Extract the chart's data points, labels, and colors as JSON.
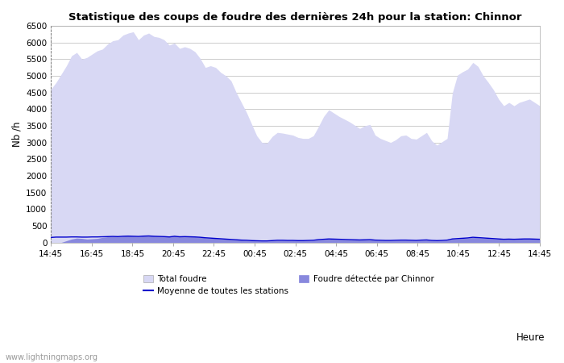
{
  "title": "Statistique des coups de foudre des dernières 24h pour la station: Chinnor",
  "ylabel": "Nb /h",
  "xlabel": "Heure",
  "watermark": "www.lightningmaps.org",
  "ylim": [
    0,
    6500
  ],
  "yticks": [
    0,
    500,
    1000,
    1500,
    2000,
    2500,
    3000,
    3500,
    4000,
    4500,
    5000,
    5500,
    6000,
    6500
  ],
  "xtick_labels": [
    "14:45",
    "16:45",
    "18:45",
    "20:45",
    "22:45",
    "00:45",
    "02:45",
    "04:45",
    "06:45",
    "08:45",
    "10:45",
    "12:45",
    "14:45"
  ],
  "background_color": "#ffffff",
  "plot_bg_color": "#ffffff",
  "grid_color": "#cccccc",
  "fill_total_color": "#d8d8f4",
  "fill_local_color": "#8888dd",
  "line_color": "#0000cc",
  "total_foudre": [
    4600,
    4800,
    5050,
    5300,
    5600,
    5700,
    5500,
    5550,
    5650,
    5750,
    5800,
    5950,
    6050,
    6080,
    6220,
    6280,
    6320,
    6080,
    6220,
    6280,
    6180,
    6150,
    6080,
    5920,
    5980,
    5820,
    5870,
    5820,
    5720,
    5520,
    5250,
    5300,
    5250,
    5100,
    5000,
    4850,
    4500,
    4200,
    3900,
    3550,
    3200,
    3000,
    2980,
    3180,
    3300,
    3280,
    3250,
    3220,
    3150,
    3120,
    3120,
    3200,
    3480,
    3780,
    3980,
    3880,
    3780,
    3700,
    3620,
    3520,
    3420,
    3500,
    3540,
    3220,
    3120,
    3060,
    3000,
    3080,
    3200,
    3220,
    3120,
    3100,
    3200,
    3300,
    3050,
    2920,
    3020,
    3120,
    4480,
    5020,
    5120,
    5200,
    5400,
    5280,
    5000,
    4800,
    4580,
    4300,
    4100,
    4200,
    4100,
    4200,
    4250,
    4300,
    4200,
    4100
  ],
  "local_foudre": [
    0,
    0,
    0,
    50,
    100,
    130,
    120,
    100,
    110,
    120,
    150,
    170,
    180,
    170,
    190,
    200,
    190,
    180,
    200,
    210,
    195,
    190,
    180,
    170,
    200,
    180,
    185,
    180,
    170,
    160,
    140,
    130,
    120,
    110,
    100,
    90,
    80,
    70,
    60,
    50,
    45,
    40,
    40,
    50,
    60,
    60,
    55,
    55,
    50,
    50,
    55,
    60,
    80,
    90,
    100,
    95,
    90,
    85,
    80,
    75,
    70,
    75,
    80,
    65,
    60,
    55,
    55,
    60,
    65,
    65,
    60,
    55,
    65,
    70,
    55,
    50,
    55,
    65,
    100,
    110,
    120,
    130,
    150,
    140,
    130,
    120,
    110,
    100,
    90,
    95,
    90,
    95,
    100,
    100,
    95,
    90
  ],
  "moyenne_line": [
    150,
    160,
    160,
    160,
    165,
    165,
    160,
    160,
    165,
    165,
    170,
    175,
    180,
    175,
    185,
    190,
    185,
    180,
    190,
    195,
    185,
    180,
    175,
    165,
    185,
    170,
    175,
    170,
    165,
    155,
    140,
    130,
    120,
    110,
    100,
    90,
    80,
    70,
    65,
    55,
    50,
    45,
    45,
    55,
    65,
    65,
    60,
    60,
    55,
    55,
    60,
    65,
    85,
    95,
    105,
    100,
    95,
    90,
    85,
    80,
    75,
    80,
    85,
    70,
    65,
    60,
    60,
    65,
    70,
    70,
    65,
    60,
    70,
    75,
    60,
    55,
    60,
    70,
    105,
    115,
    125,
    135,
    155,
    145,
    135,
    125,
    115,
    105,
    95,
    100,
    95,
    100,
    105,
    105,
    100,
    95
  ],
  "legend_total_color": "#d8d8f4",
  "legend_local_color": "#8888dd",
  "legend_total_label": "Total foudre",
  "legend_local_label": "Foudre détectée par Chinnor",
  "legend_line_label": "Moyenne de toutes les stations"
}
